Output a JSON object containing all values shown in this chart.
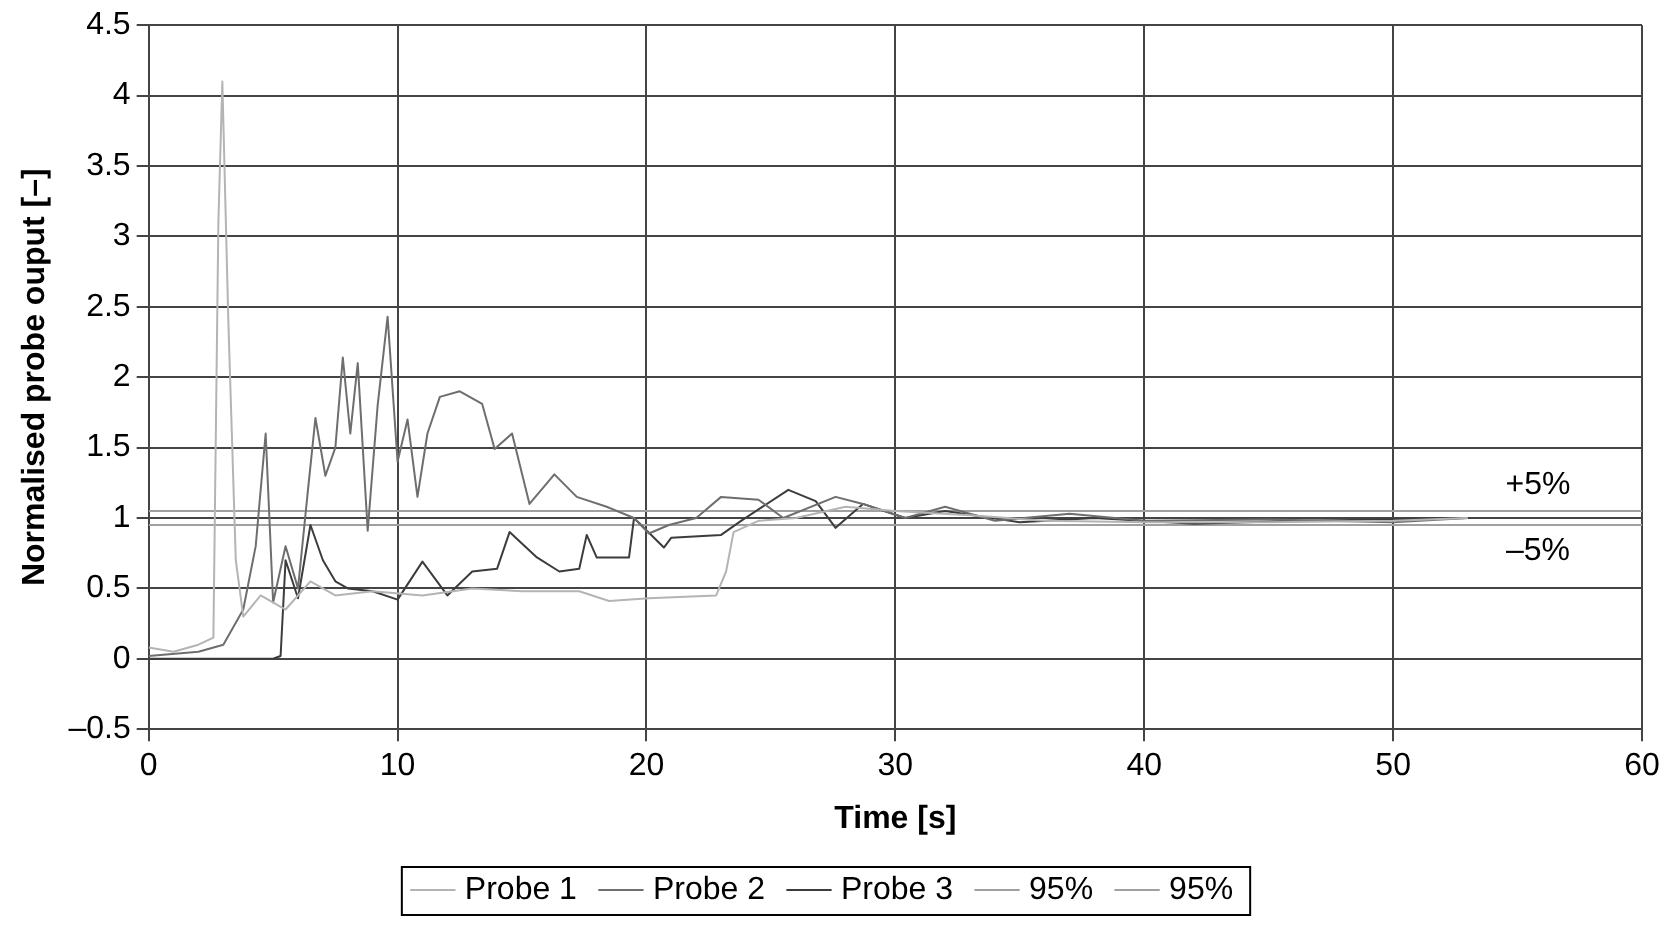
{
  "chart_data": {
    "type": "line",
    "xlabel": "Time [s]",
    "ylabel": "Normalised probe ouput [–]",
    "xlim": [
      0,
      60
    ],
    "xticks": [
      0,
      10,
      20,
      30,
      40,
      50,
      60
    ],
    "ylim": [
      -0.5,
      4.5
    ],
    "yticks": [
      {
        "value": -0.5,
        "label": "–0.5"
      },
      0,
      0.5,
      1,
      1.5,
      2,
      2.5,
      3,
      3.5,
      4,
      4.5
    ],
    "grid": true,
    "legend": "bottom",
    "marker": "none",
    "line_style": "solid",
    "annotations": [
      "+5%",
      "–5%"
    ],
    "series": [
      {
        "name": "Probe 1",
        "color": "#b4b4b4",
        "x": [
          0,
          1,
          2,
          2.6,
          2.8,
          2.96,
          3.2,
          3.5,
          3.8,
          4.5,
          5.5,
          6.5,
          7.5,
          9,
          11,
          13,
          15,
          17.3,
          18.5,
          20.1,
          22.8,
          23.2,
          23.5,
          24.5,
          26,
          28,
          30,
          33,
          36,
          40,
          45,
          50,
          53
        ],
        "values": [
          0.08,
          0.05,
          0.1,
          0.15,
          3.1,
          4.1,
          2.4,
          0.7,
          0.3,
          0.45,
          0.35,
          0.55,
          0.45,
          0.48,
          0.45,
          0.5,
          0.48,
          0.48,
          0.41,
          0.43,
          0.45,
          0.62,
          0.9,
          0.98,
          1.0,
          1.08,
          1.05,
          1.02,
          0.98,
          0.97,
          0.97,
          0.98,
          1.0
        ]
      },
      {
        "name": "Probe 2",
        "color": "#6e6e6e",
        "x": [
          0,
          2,
          3,
          3.8,
          4.3,
          4.7,
          5,
          5.5,
          6,
          6.4,
          6.7,
          7.1,
          7.5,
          7.8,
          8.1,
          8.4,
          8.8,
          9.2,
          9.6,
          10,
          10.4,
          10.8,
          11.2,
          11.7,
          12.5,
          13.4,
          13.9,
          14.6,
          15.3,
          16.3,
          17.2,
          18.4,
          19.5,
          20.1,
          20.9,
          22,
          23,
          24.5,
          25.5,
          27.6,
          28.7,
          30.4,
          32,
          34,
          37,
          40,
          45,
          50,
          53
        ],
        "values": [
          0.02,
          0.05,
          0.1,
          0.35,
          0.8,
          1.6,
          0.4,
          0.8,
          0.5,
          1.2,
          1.71,
          1.3,
          1.5,
          2.14,
          1.6,
          2.1,
          0.91,
          1.8,
          2.43,
          1.4,
          1.7,
          1.15,
          1.6,
          1.86,
          1.9,
          1.81,
          1.49,
          1.6,
          1.1,
          1.31,
          1.15,
          1.08,
          1.0,
          0.89,
          0.95,
          1.0,
          1.15,
          1.13,
          1.0,
          1.15,
          1.1,
          1.0,
          1.08,
          0.98,
          1.03,
          0.98,
          0.99,
          0.97,
          1.0
        ]
      },
      {
        "name": "Probe 3",
        "color": "#3c3c3c",
        "x": [
          0,
          3,
          5,
          5.3,
          5.5,
          6,
          6.5,
          7,
          7.5,
          8,
          9,
          10,
          11,
          12,
          13,
          14,
          14.5,
          15.6,
          16.5,
          17.3,
          17.6,
          18,
          19.3,
          19.5,
          20.7,
          21,
          23,
          23.8,
          25.7,
          26.8,
          27.6,
          28.7,
          30.4,
          32,
          35,
          38,
          42,
          46,
          50,
          53
        ],
        "values": [
          0,
          0,
          0,
          0.02,
          0.7,
          0.43,
          0.95,
          0.7,
          0.55,
          0.5,
          0.48,
          0.42,
          0.69,
          0.45,
          0.62,
          0.64,
          0.9,
          0.72,
          0.62,
          0.64,
          0.88,
          0.72,
          0.72,
          1.0,
          0.79,
          0.86,
          0.88,
          0.98,
          1.2,
          1.12,
          0.93,
          1.1,
          1.0,
          1.05,
          0.97,
          1.0,
          0.96,
          0.98,
          0.99,
          1.0
        ]
      },
      {
        "name": "95%",
        "color": "#a0a0a0",
        "x": [
          0,
          60
        ],
        "values": [
          1.05,
          1.05
        ]
      },
      {
        "name": "95%",
        "color": "#a0a0a0",
        "x": [
          0,
          60
        ],
        "values": [
          0.95,
          0.95
        ]
      }
    ]
  }
}
